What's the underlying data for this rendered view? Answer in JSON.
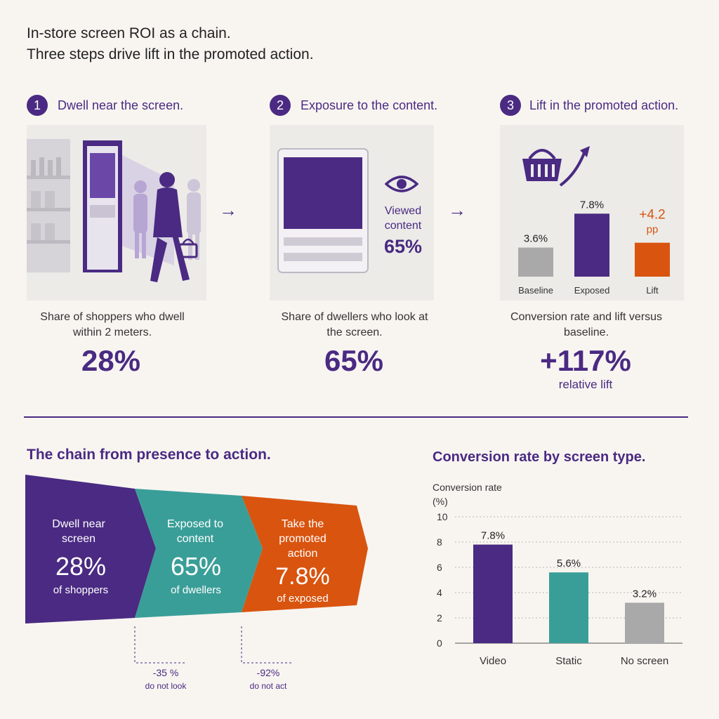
{
  "header": {
    "line1": "In-store screen ROI as a chain.",
    "line2": "Three steps drive lift in the promoted action."
  },
  "steps": [
    {
      "num": "1",
      "title": "Dwell near the screen.",
      "desc": "Share of shoppers who dwell within 2 meters.",
      "value": "28%"
    },
    {
      "num": "2",
      "title": "Exposure to the content.",
      "desc": "Share of dwellers who look at the screen.",
      "value": "65%",
      "panel_label": "Viewed content",
      "panel_value": "65%"
    },
    {
      "num": "3",
      "title": "Lift in the promoted action.",
      "desc": "Conversion rate and lift versus baseline.",
      "value": "+117%",
      "value_sub": "relative lift"
    }
  ],
  "arrows": [
    "→",
    "→"
  ],
  "mini_chart": {
    "type": "bar",
    "categories": [
      "Baseline",
      "Exposed",
      "Lift"
    ],
    "values": [
      3.6,
      7.8,
      4.2
    ],
    "labels": [
      "3.6%",
      "7.8%",
      "+4.2 pp"
    ],
    "colors": [
      "#a9a9a9",
      "#4a2a82",
      "#d9540f"
    ]
  },
  "funnel": {
    "title": "The chain from presence to action.",
    "segments": [
      {
        "label": "Dwell near screen",
        "value": "28%",
        "sub": "of shoppers",
        "color": "#4a2a82"
      },
      {
        "label": "Exposed to content",
        "value": "65%",
        "sub": "of dwellers",
        "color": "#3a9e98"
      },
      {
        "label": "Take the promoted action",
        "value": "7.8%",
        "sub": "of exposed",
        "color": "#d9540f"
      }
    ],
    "notes": [
      {
        "value": "-35 %",
        "text": "do not look"
      },
      {
        "value": "-92%",
        "text": "do not act"
      }
    ]
  },
  "chart_data": {
    "type": "bar",
    "title": "Conversion rate by screen type.",
    "ylabel": "Conversion rate (%)",
    "categories": [
      "Video",
      "Static",
      "No screen"
    ],
    "values": [
      7.8,
      5.6,
      3.2
    ],
    "data_labels": [
      "7.8%",
      "5.6%",
      "3.2%"
    ],
    "colors": [
      "#4a2a82",
      "#3a9e98",
      "#a9a9a9"
    ],
    "ylim": [
      0,
      10
    ],
    "yticks": [
      0,
      2,
      4,
      6,
      8,
      10
    ],
    "grid": true
  }
}
